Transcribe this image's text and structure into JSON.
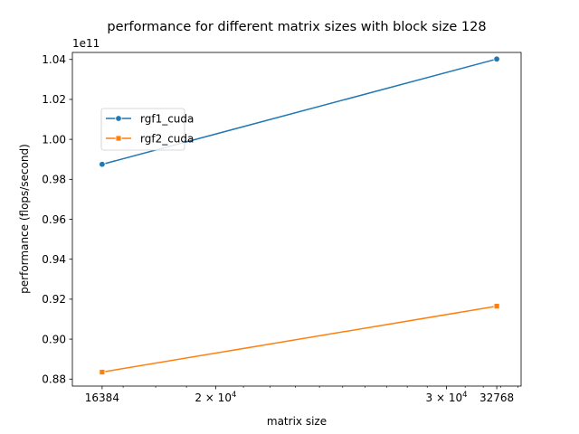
{
  "chart_data": {
    "type": "line",
    "title": "performance for different matrix sizes with block size 128",
    "xlabel": "matrix size",
    "ylabel": "performance (flops/second)",
    "x_scale": "log",
    "y_offset_label": "1e11",
    "xlim": [
      15550,
      34200
    ],
    "ylim": [
      0.8765,
      1.0435
    ],
    "x_ticks": [
      {
        "value": 16384,
        "label": "16384",
        "sup": ""
      },
      {
        "value": 20000,
        "label": "2 × 10",
        "sup": "4"
      },
      {
        "value": 30000,
        "label": "3 × 10",
        "sup": "4"
      },
      {
        "value": 32768,
        "label": "32768",
        "sup": ""
      }
    ],
    "y_ticks": [
      {
        "value": 0.88,
        "label": "0.88"
      },
      {
        "value": 0.9,
        "label": "0.90"
      },
      {
        "value": 0.92,
        "label": "0.92"
      },
      {
        "value": 0.94,
        "label": "0.94"
      },
      {
        "value": 0.96,
        "label": "0.96"
      },
      {
        "value": 0.98,
        "label": "0.98"
      },
      {
        "value": 1.0,
        "label": "1.00"
      },
      {
        "value": 1.02,
        "label": "1.02"
      },
      {
        "value": 1.04,
        "label": "1.04"
      }
    ],
    "legend": "upper left",
    "grid": false,
    "series": [
      {
        "name": "rgf1_cuda",
        "color": "#1f77b4",
        "marker": "circle",
        "x": [
          16384,
          32768
        ],
        "y": [
          0.9875,
          1.0402
        ]
      },
      {
        "name": "rgf2_cuda",
        "color": "#ff7f0e",
        "marker": "square",
        "x": [
          16384,
          32768
        ],
        "y": [
          0.8835,
          0.9165
        ]
      }
    ]
  }
}
